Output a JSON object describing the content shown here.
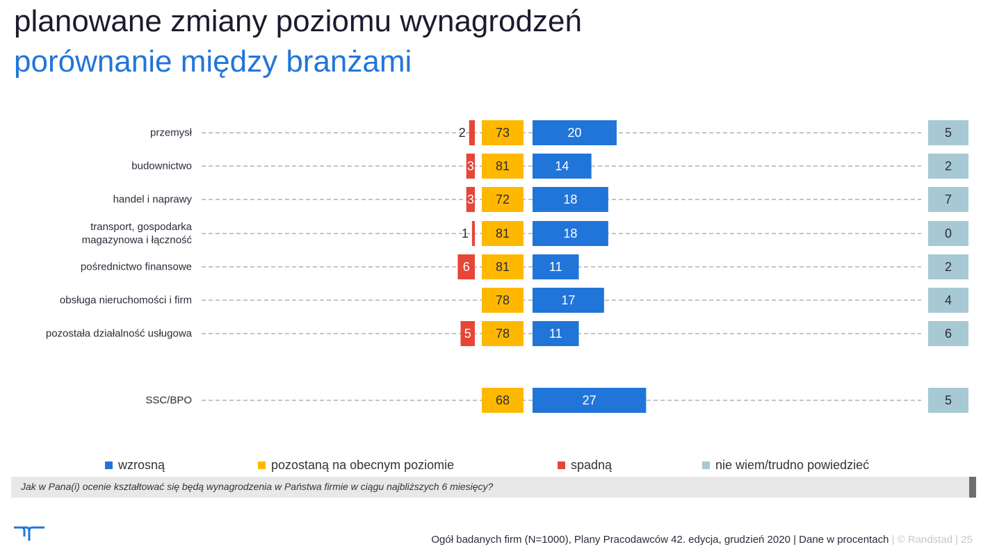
{
  "page": {
    "title": "planowane zmiany poziomu wynagrodzeń",
    "subtitle": "porównanie między branżami",
    "question": "Jak w Pana(i) ocenie kształtować się będą wynagrodzenia w Państwa firmie w ciągu najbliższych 6 miesięcy?",
    "footer_main": "Ogół badanych firm (N=1000), Plany Pracodawców 42. edycja, grudzień 2020  |  Dane w procentach",
    "footer_brand": "  |  © Randstad  |  25"
  },
  "legend": [
    {
      "label": "wzrosną",
      "color": "#2175d9"
    },
    {
      "label": "pozostaną na obecnym poziomie",
      "color": "#ffb800"
    },
    {
      "label": "spadną",
      "color": "#e74536"
    },
    {
      "label": "nie wiem/trudno powiedzieć",
      "color": "#a7c9d3"
    }
  ],
  "chart_data": {
    "type": "bar",
    "orientation": "horizontal",
    "categories": [
      "przemysł",
      "budownictwo",
      "handel i naprawy",
      "transport, gospodarka\nmagazynowa i łączność",
      "pośrednictwo finansowe",
      "obsługa nieruchomości i firm",
      "pozostała działalność usługowa",
      "SSC/BPO"
    ],
    "series": [
      {
        "name": "spadną",
        "color": "#e74536",
        "values": [
          2,
          3,
          3,
          1,
          6,
          null,
          5,
          null
        ]
      },
      {
        "name": "pozostaną na obecnym poziomie",
        "color": "#ffb800",
        "values": [
          73,
          81,
          72,
          81,
          81,
          78,
          78,
          68
        ]
      },
      {
        "name": "wzrosną",
        "color": "#2175d9",
        "values": [
          20,
          14,
          18,
          18,
          11,
          17,
          11,
          27
        ]
      },
      {
        "name": "nie wiem/trudno powiedzieć",
        "color": "#a7c9d3",
        "values": [
          5,
          2,
          7,
          0,
          2,
          4,
          6,
          5
        ]
      }
    ],
    "units": "%",
    "grid": false
  }
}
